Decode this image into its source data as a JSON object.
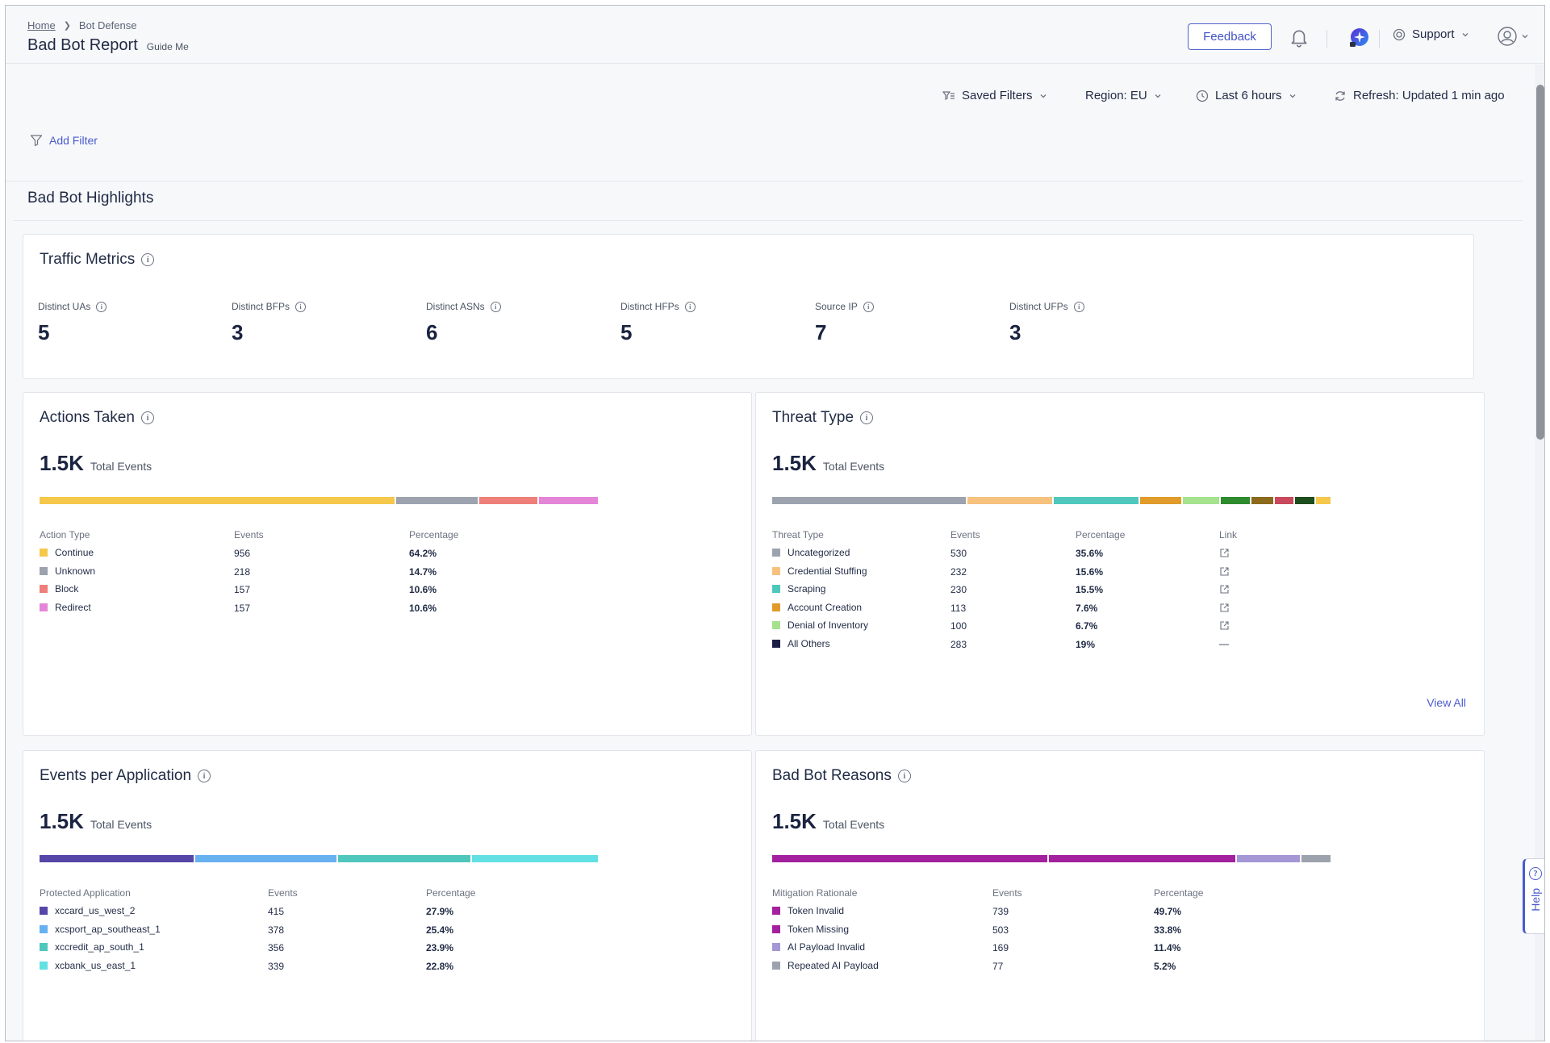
{
  "breadcrumb": {
    "home": "Home",
    "current": "Bot Defense"
  },
  "page": {
    "title": "Bad Bot Report",
    "guide": "Guide Me"
  },
  "header": {
    "feedback": "Feedback",
    "support": "Support"
  },
  "toolbar": {
    "saved_filters": "Saved Filters",
    "region": "Region: EU",
    "time_range": "Last 6 hours",
    "refresh": "Refresh: Updated 1 min ago",
    "add_filter": "Add Filter"
  },
  "section": {
    "title": "Bad Bot Highlights"
  },
  "traffic": {
    "title": "Traffic Metrics",
    "metrics": [
      {
        "label": "Distinct UAs",
        "value": "5"
      },
      {
        "label": "Distinct BFPs",
        "value": "3"
      },
      {
        "label": "Distinct ASNs",
        "value": "6"
      },
      {
        "label": "Distinct HFPs",
        "value": "5"
      },
      {
        "label": "Source IP",
        "value": "7"
      },
      {
        "label": "Distinct UFPs",
        "value": "3"
      }
    ]
  },
  "actions": {
    "title": "Actions Taken",
    "total": "1.5K",
    "total_label": "Total Events",
    "columns": [
      "Action Type",
      "Events",
      "Percentage"
    ],
    "rows": [
      {
        "name": "Continue",
        "events": "956",
        "pct": "64.2%",
        "color": "#f5c84c",
        "share": 64.2
      },
      {
        "name": "Unknown",
        "events": "218",
        "pct": "14.7%",
        "color": "#9ca3af",
        "share": 14.7
      },
      {
        "name": "Block",
        "events": "157",
        "pct": "10.6%",
        "color": "#ee7f79",
        "share": 10.6
      },
      {
        "name": "Redirect",
        "events": "157",
        "pct": "10.6%",
        "color": "#e585d8",
        "share": 10.6
      }
    ]
  },
  "threats": {
    "title": "Threat Type",
    "total": "1.5K",
    "total_label": "Total Events",
    "columns": [
      "Threat Type",
      "Events",
      "Percentage",
      "Link"
    ],
    "rows": [
      {
        "name": "Uncategorized",
        "events": "530",
        "pct": "35.6%",
        "color": "#9ca3af",
        "link": true
      },
      {
        "name": "Credential Stuffing",
        "events": "232",
        "pct": "15.6%",
        "color": "#f6c27e",
        "link": true
      },
      {
        "name": "Scraping",
        "events": "230",
        "pct": "15.5%",
        "color": "#4fc7bd",
        "link": true
      },
      {
        "name": "Account Creation",
        "events": "113",
        "pct": "7.6%",
        "color": "#e09b2a",
        "link": true
      },
      {
        "name": "Denial of Inventory",
        "events": "100",
        "pct": "6.7%",
        "color": "#a6e28d",
        "link": true
      },
      {
        "name": "All Others",
        "events": "283",
        "pct": "19%",
        "color": "#1b1f45",
        "link": false
      }
    ],
    "bar": [
      {
        "color": "#9ca3af",
        "share": 35.6
      },
      {
        "color": "#f6c27e",
        "share": 15.6
      },
      {
        "color": "#4fc7bd",
        "share": 15.5
      },
      {
        "color": "#e09b2a",
        "share": 7.6
      },
      {
        "color": "#a6e28d",
        "share": 6.7
      },
      {
        "color": "#2e8b2e",
        "share": 5.3
      },
      {
        "color": "#8b6a1c",
        "share": 4.0
      },
      {
        "color": "#c9485b",
        "share": 3.5
      },
      {
        "color": "#1e4d1e",
        "share": 3.5
      },
      {
        "color": "#f5c84c",
        "share": 2.7
      }
    ],
    "no_link": "—",
    "view_all": "View All"
  },
  "applications": {
    "title": "Events per Application",
    "total": "1.5K",
    "total_label": "Total Events",
    "columns": [
      "Protected Application",
      "Events",
      "Percentage"
    ],
    "rows": [
      {
        "name": "xccard_us_west_2",
        "events": "415",
        "pct": "27.9%",
        "color": "#5546a8",
        "share": 27.9
      },
      {
        "name": "xcsport_ap_southeast_1",
        "events": "378",
        "pct": "25.4%",
        "color": "#67b1f0",
        "share": 25.4
      },
      {
        "name": "xccredit_ap_south_1",
        "events": "356",
        "pct": "23.9%",
        "color": "#4fc7bd",
        "share": 23.9
      },
      {
        "name": "xcbank_us_east_1",
        "events": "339",
        "pct": "22.8%",
        "color": "#63e0e3",
        "share": 22.8
      }
    ]
  },
  "reasons": {
    "title": "Bad Bot Reasons",
    "total": "1.5K",
    "total_label": "Total Events",
    "columns": [
      "Mitigation Rationale",
      "Events",
      "Percentage"
    ],
    "rows": [
      {
        "name": "Token Invalid",
        "events": "739",
        "pct": "49.7%",
        "color": "#a3219e",
        "share": 49.7
      },
      {
        "name": "Token Missing",
        "events": "503",
        "pct": "33.8%",
        "color": "#a3219e",
        "share": 33.8
      },
      {
        "name": "AI Payload Invalid",
        "events": "169",
        "pct": "11.4%",
        "color": "#a596d6",
        "share": 11.4
      },
      {
        "name": "Repeated AI Payload",
        "events": "77",
        "pct": "5.2%",
        "color": "#9ca3af",
        "share": 5.2
      }
    ]
  },
  "help": {
    "label": "Help"
  }
}
